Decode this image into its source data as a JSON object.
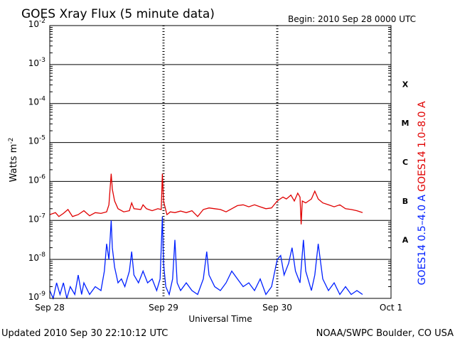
{
  "chart_data": {
    "type": "line",
    "title": "GOES Xray Flux (5 minute data)",
    "begin_label": "Begin:  2010 Sep 28 0000 UTC",
    "xlabel": "Universal Time",
    "ylabel_base": "Watts m",
    "ylabel_exp": "-2",
    "yscale": "log",
    "ylim_exp": [
      -9,
      -2
    ],
    "xlim_days": [
      0,
      3
    ],
    "y_tick_base": "10",
    "y_ticks": [
      {
        "exp": "-9",
        "v": -9
      },
      {
        "exp": "-8",
        "v": -8
      },
      {
        "exp": "-7",
        "v": -7
      },
      {
        "exp": "-6",
        "v": -6
      },
      {
        "exp": "-5",
        "v": -5
      },
      {
        "exp": "-4",
        "v": -4
      },
      {
        "exp": "-3",
        "v": -3
      },
      {
        "exp": "-2",
        "v": -2
      }
    ],
    "x_ticks": [
      {
        "label": "Sep 28",
        "day": 0
      },
      {
        "label": "Sep 29",
        "day": 1
      },
      {
        "label": "Sep 30",
        "day": 2
      },
      {
        "label": "Oct 1",
        "day": 3
      }
    ],
    "flare_classes": [
      {
        "label": "X",
        "band": -3.5
      },
      {
        "label": "M",
        "band": -4.5
      },
      {
        "label": "C",
        "band": -5.5
      },
      {
        "label": "B",
        "band": -6.5
      },
      {
        "label": "A",
        "band": -7.5
      }
    ],
    "series": [
      {
        "name": "GOES14 1.0–8.0 A",
        "color": "#e00000",
        "points": [
          [
            0.0,
            -6.85
          ],
          [
            0.05,
            -6.8
          ],
          [
            0.08,
            -6.9
          ],
          [
            0.12,
            -6.82
          ],
          [
            0.16,
            -6.72
          ],
          [
            0.2,
            -6.9
          ],
          [
            0.25,
            -6.85
          ],
          [
            0.3,
            -6.75
          ],
          [
            0.35,
            -6.88
          ],
          [
            0.4,
            -6.8
          ],
          [
            0.45,
            -6.82
          ],
          [
            0.5,
            -6.78
          ],
          [
            0.52,
            -6.6
          ],
          [
            0.54,
            -5.8
          ],
          [
            0.55,
            -6.2
          ],
          [
            0.57,
            -6.5
          ],
          [
            0.6,
            -6.7
          ],
          [
            0.65,
            -6.78
          ],
          [
            0.7,
            -6.75
          ],
          [
            0.72,
            -6.55
          ],
          [
            0.74,
            -6.7
          ],
          [
            0.8,
            -6.72
          ],
          [
            0.82,
            -6.6
          ],
          [
            0.85,
            -6.7
          ],
          [
            0.9,
            -6.75
          ],
          [
            0.95,
            -6.7
          ],
          [
            0.98,
            -6.72
          ],
          [
            0.99,
            -5.8
          ],
          [
            1.0,
            -6.5
          ],
          [
            1.03,
            -6.85
          ],
          [
            1.06,
            -6.78
          ],
          [
            1.1,
            -6.8
          ],
          [
            1.15,
            -6.76
          ],
          [
            1.2,
            -6.8
          ],
          [
            1.25,
            -6.75
          ],
          [
            1.3,
            -6.9
          ],
          [
            1.35,
            -6.72
          ],
          [
            1.4,
            -6.68
          ],
          [
            1.45,
            -6.7
          ],
          [
            1.5,
            -6.72
          ],
          [
            1.55,
            -6.78
          ],
          [
            1.6,
            -6.7
          ],
          [
            1.65,
            -6.62
          ],
          [
            1.7,
            -6.6
          ],
          [
            1.75,
            -6.65
          ],
          [
            1.8,
            -6.6
          ],
          [
            1.85,
            -6.65
          ],
          [
            1.9,
            -6.7
          ],
          [
            1.95,
            -6.68
          ],
          [
            2.0,
            -6.5
          ],
          [
            2.05,
            -6.4
          ],
          [
            2.08,
            -6.45
          ],
          [
            2.12,
            -6.35
          ],
          [
            2.15,
            -6.5
          ],
          [
            2.18,
            -6.3
          ],
          [
            2.2,
            -6.4
          ],
          [
            2.21,
            -7.1
          ],
          [
            2.22,
            -6.5
          ],
          [
            2.25,
            -6.55
          ],
          [
            2.3,
            -6.45
          ],
          [
            2.33,
            -6.25
          ],
          [
            2.36,
            -6.45
          ],
          [
            2.4,
            -6.55
          ],
          [
            2.45,
            -6.6
          ],
          [
            2.5,
            -6.65
          ],
          [
            2.55,
            -6.6
          ],
          [
            2.6,
            -6.7
          ],
          [
            2.65,
            -6.72
          ],
          [
            2.7,
            -6.75
          ],
          [
            2.75,
            -6.8
          ]
        ]
      },
      {
        "name": "GOES14 0.5–4.0 A",
        "color": "#0020ff",
        "points": [
          [
            0.0,
            -8.8
          ],
          [
            0.03,
            -9.0
          ],
          [
            0.06,
            -8.6
          ],
          [
            0.09,
            -8.9
          ],
          [
            0.12,
            -8.6
          ],
          [
            0.15,
            -9.0
          ],
          [
            0.18,
            -8.7
          ],
          [
            0.22,
            -8.9
          ],
          [
            0.25,
            -8.4
          ],
          [
            0.28,
            -8.9
          ],
          [
            0.3,
            -8.6
          ],
          [
            0.35,
            -8.9
          ],
          [
            0.4,
            -8.7
          ],
          [
            0.45,
            -8.8
          ],
          [
            0.48,
            -8.3
          ],
          [
            0.5,
            -7.6
          ],
          [
            0.52,
            -8.0
          ],
          [
            0.54,
            -7.0
          ],
          [
            0.55,
            -7.7
          ],
          [
            0.57,
            -8.2
          ],
          [
            0.6,
            -8.6
          ],
          [
            0.63,
            -8.5
          ],
          [
            0.66,
            -8.7
          ],
          [
            0.7,
            -8.3
          ],
          [
            0.72,
            -7.8
          ],
          [
            0.74,
            -8.4
          ],
          [
            0.78,
            -8.6
          ],
          [
            0.82,
            -8.3
          ],
          [
            0.86,
            -8.6
          ],
          [
            0.9,
            -8.5
          ],
          [
            0.94,
            -8.8
          ],
          [
            0.97,
            -8.5
          ],
          [
            0.99,
            -6.9
          ],
          [
            1.0,
            -8.1
          ],
          [
            1.02,
            -8.7
          ],
          [
            1.05,
            -8.9
          ],
          [
            1.08,
            -8.5
          ],
          [
            1.1,
            -7.5
          ],
          [
            1.12,
            -8.6
          ],
          [
            1.15,
            -8.8
          ],
          [
            1.2,
            -8.6
          ],
          [
            1.25,
            -8.8
          ],
          [
            1.3,
            -8.9
          ],
          [
            1.35,
            -8.5
          ],
          [
            1.38,
            -7.8
          ],
          [
            1.4,
            -8.4
          ],
          [
            1.45,
            -8.7
          ],
          [
            1.5,
            -8.8
          ],
          [
            1.55,
            -8.6
          ],
          [
            1.6,
            -8.3
          ],
          [
            1.65,
            -8.5
          ],
          [
            1.7,
            -8.7
          ],
          [
            1.75,
            -8.6
          ],
          [
            1.8,
            -8.8
          ],
          [
            1.85,
            -8.5
          ],
          [
            1.9,
            -8.9
          ],
          [
            1.95,
            -8.7
          ],
          [
            2.0,
            -8.0
          ],
          [
            2.03,
            -7.9
          ],
          [
            2.06,
            -8.4
          ],
          [
            2.1,
            -8.1
          ],
          [
            2.13,
            -7.7
          ],
          [
            2.16,
            -8.3
          ],
          [
            2.2,
            -8.6
          ],
          [
            2.23,
            -7.5
          ],
          [
            2.25,
            -8.3
          ],
          [
            2.3,
            -8.8
          ],
          [
            2.33,
            -8.4
          ],
          [
            2.36,
            -7.6
          ],
          [
            2.4,
            -8.5
          ],
          [
            2.45,
            -8.8
          ],
          [
            2.5,
            -8.6
          ],
          [
            2.55,
            -8.9
          ],
          [
            2.6,
            -8.7
          ],
          [
            2.65,
            -8.9
          ],
          [
            2.7,
            -8.8
          ],
          [
            2.75,
            -8.9
          ]
        ]
      }
    ]
  },
  "footer": {
    "updated": "Updated 2010 Sep 30 22:10:12 UTC",
    "credit": "NOAA/SWPC Boulder, CO USA"
  }
}
